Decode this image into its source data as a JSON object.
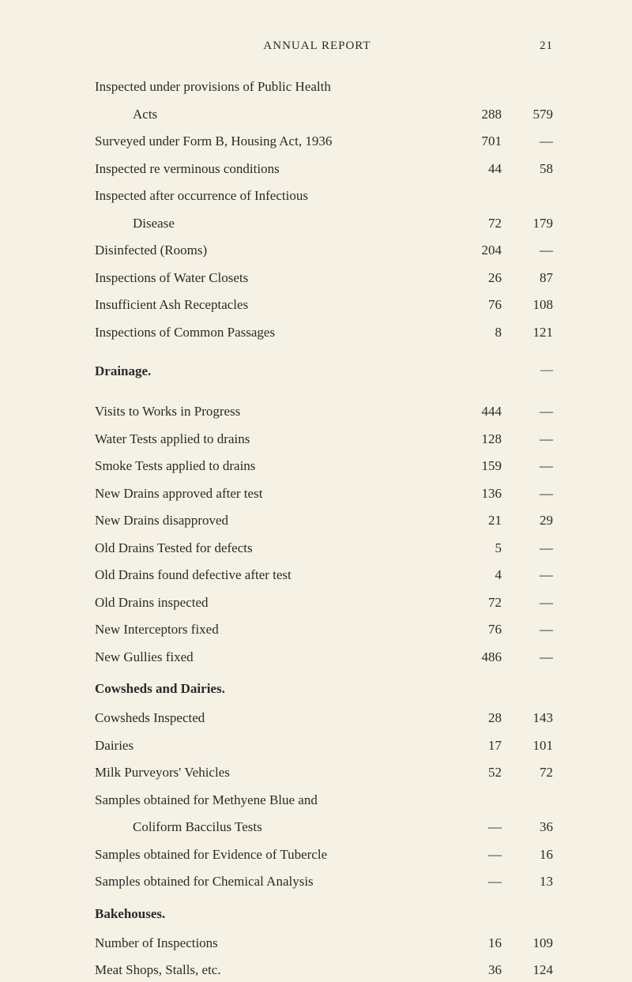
{
  "page_header": {
    "title": "ANNUAL REPORT",
    "page_number": "21"
  },
  "section1": {
    "rows": [
      {
        "label": "Inspected under provisions of Public Health",
        "col1": "",
        "col2": ""
      },
      {
        "label_indent": "Acts",
        "col1": "288",
        "col2": "579"
      },
      {
        "label": "Surveyed under Form B, Housing Act, 1936",
        "col1": "701",
        "col2": "—"
      },
      {
        "label": "Inspected re verminous conditions",
        "col1": "44",
        "col2": "58"
      },
      {
        "label": "Inspected after occurrence of Infectious",
        "col1": "",
        "col2": ""
      },
      {
        "label_indent": "Disease",
        "col1": "72",
        "col2": "179"
      },
      {
        "label": "Disinfected (Rooms)",
        "col1": "204",
        "col2": "—"
      },
      {
        "label": "Inspections of Water Closets",
        "col1": "26",
        "col2": "87"
      },
      {
        "label": "Insufficient Ash Receptacles",
        "col1": "76",
        "col2": "108"
      },
      {
        "label": "Inspections of Common Passages",
        "col1": "8",
        "col2": "121"
      }
    ]
  },
  "section2": {
    "heading": "Drainage.",
    "heading_col2": "—",
    "rows": [
      {
        "label": "Visits to Works in Progress",
        "col1": "444",
        "col2": "—"
      },
      {
        "label": "Water Tests applied to drains",
        "col1": "128",
        "col2": "—"
      },
      {
        "label": "Smoke Tests applied to drains",
        "col1": "159",
        "col2": "—"
      },
      {
        "label": "New Drains approved after test",
        "col1": "136",
        "col2": "—"
      },
      {
        "label": "New Drains disapproved",
        "col1": "21",
        "col2": "29"
      },
      {
        "label": "Old Drains Tested for defects",
        "col1": "5",
        "col2": "—"
      },
      {
        "label": "Old Drains found defective after test",
        "col1": "4",
        "col2": "—"
      },
      {
        "label": "Old Drains inspected",
        "col1": "72",
        "col2": "—"
      },
      {
        "label": "New Interceptors fixed",
        "col1": "76",
        "col2": "—"
      },
      {
        "label": "New Gullies fixed",
        "col1": "486",
        "col2": "—"
      }
    ]
  },
  "section3": {
    "heading": "Cowsheds and Dairies.",
    "rows": [
      {
        "label": "Cowsheds Inspected",
        "col1": "28",
        "col2": "143"
      },
      {
        "label": "Dairies",
        "col1": "17",
        "col2": "101"
      },
      {
        "label": "Milk Purveyors' Vehicles",
        "col1": "52",
        "col2": "72"
      },
      {
        "label": "Samples obtained for Methyene Blue and",
        "col1": "",
        "col2": ""
      },
      {
        "label_indent": "Coliform Baccilus Tests",
        "col1": "—",
        "col2": "36"
      },
      {
        "label": "Samples obtained for Evidence of Tubercle",
        "col1": "—",
        "col2": "16"
      },
      {
        "label": "Samples obtained for Chemical Analysis",
        "col1": "—",
        "col2": "13"
      }
    ]
  },
  "section4": {
    "heading": "Bakehouses.",
    "rows": [
      {
        "label": "Number of Inspections",
        "col1": "16",
        "col2": "109"
      },
      {
        "label": "Meat Shops, Stalls, etc.",
        "col1": "36",
        "col2": "124"
      }
    ]
  }
}
